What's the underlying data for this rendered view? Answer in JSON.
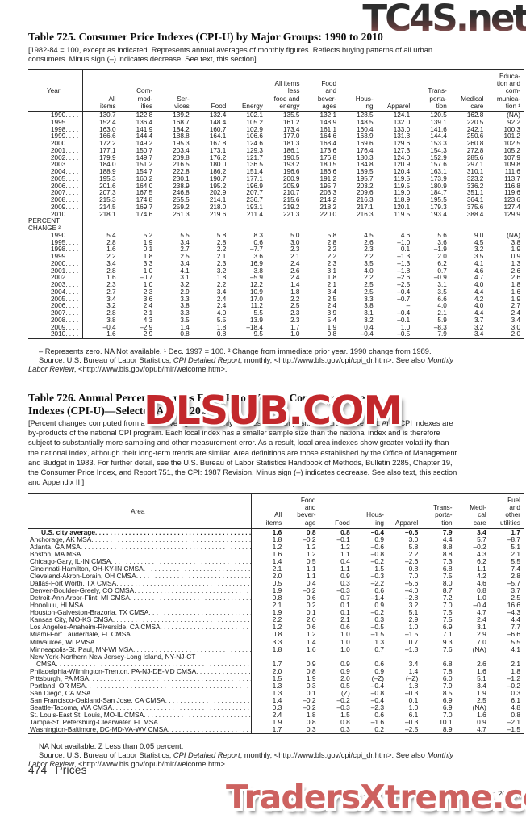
{
  "watermarks": {
    "top": "TC4S.net",
    "middle": "DLSUB.COM",
    "bottom": "TradersXtreme.com"
  },
  "table725": {
    "title": "Table 725. Consumer Price Indexes (CPI-U) by Major Groups: 1990 to 2010",
    "note_lines": [
      "[1982-84 = 100, except as indicated. Represents annual averages of monthly figures. Reflects buying patterns of all urban",
      "consumers. Minus sign (–) indicates decrease. See text, this section]"
    ],
    "year_header": "Year",
    "col_headers": [
      [
        "All",
        "items"
      ],
      [
        "Com-",
        "mod-",
        "ities"
      ],
      [
        "Ser-",
        "vices"
      ],
      [
        "Food"
      ],
      [
        "Energy"
      ],
      [
        "All items",
        "less",
        "food and",
        "energy"
      ],
      [
        "Food",
        "and",
        "bever-",
        "ages"
      ],
      [
        "Hous-",
        "ing"
      ],
      [
        "Apparel"
      ],
      [
        "Trans-",
        "porta-",
        "tion"
      ],
      [
        "Medical",
        "care"
      ],
      [
        "Educa-",
        "tion and",
        "com-",
        "munica-",
        "tion ¹"
      ]
    ],
    "index_rows": [
      {
        "year": "1990",
        "values": [
          "130.7",
          "122.8",
          "139.2",
          "132.4",
          "102.1",
          "135.5",
          "132.1",
          "128.5",
          "124.1",
          "120.5",
          "162.8",
          "(NA)"
        ]
      },
      {
        "year": "1995",
        "values": [
          "152.4",
          "136.4",
          "168.7",
          "148.4",
          "105.2",
          "161.2",
          "148.9",
          "148.5",
          "132.0",
          "139.1",
          "220.5",
          "92.2"
        ]
      },
      {
        "year": "1998",
        "values": [
          "163.0",
          "141.9",
          "184.2",
          "160.7",
          "102.9",
          "173.4",
          "161.1",
          "160.4",
          "133.0",
          "141.6",
          "242.1",
          "100.3"
        ]
      },
      {
        "year": "1999",
        "values": [
          "166.6",
          "144.4",
          "188.8",
          "164.1",
          "106.6",
          "177.0",
          "164.6",
          "163.9",
          "131.3",
          "144.4",
          "250.6",
          "101.2"
        ]
      },
      {
        "year": "2000",
        "values": [
          "172.2",
          "149.2",
          "195.3",
          "167.8",
          "124.6",
          "181.3",
          "168.4",
          "169.6",
          "129.6",
          "153.3",
          "260.8",
          "102.5"
        ]
      },
      {
        "year": "2001",
        "values": [
          "177.1",
          "150.7",
          "203.4",
          "173.1",
          "129.3",
          "186.1",
          "173.6",
          "176.4",
          "127.3",
          "154.3",
          "272.8",
          "105.2"
        ]
      },
      {
        "year": "2002",
        "values": [
          "179.9",
          "149.7",
          "209.8",
          "176.2",
          "121.7",
          "190.5",
          "176.8",
          "180.3",
          "124.0",
          "152.9",
          "285.6",
          "107.9"
        ]
      },
      {
        "year": "2003",
        "values": [
          "184.0",
          "151.2",
          "216.5",
          "180.0",
          "136.5",
          "193.2",
          "180.5",
          "184.8",
          "120.9",
          "157.6",
          "297.1",
          "109.8"
        ]
      },
      {
        "year": "2004",
        "values": [
          "188.9",
          "154.7",
          "222.8",
          "186.2",
          "151.4",
          "196.6",
          "186.6",
          "189.5",
          "120.4",
          "163.1",
          "310.1",
          "111.6"
        ]
      },
      {
        "year": "2005",
        "values": [
          "195.3",
          "160.2",
          "230.1",
          "190.7",
          "177.1",
          "200.9",
          "191.2",
          "195.7",
          "119.5",
          "173.9",
          "323.2",
          "113.7"
        ]
      },
      {
        "year": "2006",
        "values": [
          "201.6",
          "164.0",
          "238.9",
          "195.2",
          "196.9",
          "205.9",
          "195.7",
          "203.2",
          "119.5",
          "180.9",
          "336.2",
          "116.8"
        ]
      },
      {
        "year": "2007",
        "values": [
          "207.3",
          "167.5",
          "246.8",
          "202.9",
          "207.7",
          "210.7",
          "203.3",
          "209.6",
          "119.0",
          "184.7",
          "351.1",
          "119.6"
        ]
      },
      {
        "year": "2008",
        "values": [
          "215.3",
          "174.8",
          "255.5",
          "214.1",
          "236.7",
          "215.6",
          "214.2",
          "216.3",
          "118.9",
          "195.5",
          "364.1",
          "123.6"
        ]
      },
      {
        "year": "2009",
        "values": [
          "214.5",
          "169.7",
          "259.2",
          "218.0",
          "193.1",
          "219.2",
          "218.2",
          "217.1",
          "120.1",
          "179.3",
          "375.6",
          "127.4"
        ]
      },
      {
        "year": "2010",
        "values": [
          "218.1",
          "174.6",
          "261.3",
          "219.6",
          "211.4",
          "221.3",
          "220.0",
          "216.3",
          "119.5",
          "193.4",
          "388.4",
          "129.9"
        ]
      }
    ],
    "percent_label_lines": [
      "PERCENT",
      "CHANGE ²"
    ],
    "percent_rows": [
      {
        "year": "1990",
        "values": [
          "5.4",
          "5.2",
          "5.5",
          "5.8",
          "8.3",
          "5.0",
          "5.8",
          "4.5",
          "4.6",
          "5.6",
          "9.0",
          "(NA)"
        ]
      },
      {
        "year": "1995",
        "values": [
          "2.8",
          "1.9",
          "3.4",
          "2.8",
          "0.6",
          "3.0",
          "2.8",
          "2.6",
          "–1.0",
          "3.6",
          "4.5",
          "3.8"
        ]
      },
      {
        "year": "1998",
        "values": [
          "1.6",
          "0.1",
          "2.7",
          "2.2",
          "–7.7",
          "2.3",
          "2.2",
          "2.3",
          "0.1",
          "–1.9",
          "3.2",
          "1.9"
        ]
      },
      {
        "year": "1999",
        "values": [
          "2.2",
          "1.8",
          "2.5",
          "2.1",
          "3.6",
          "2.1",
          "2.2",
          "2.2",
          "–1.3",
          "2.0",
          "3.5",
          "0.9"
        ]
      },
      {
        "year": "2000",
        "values": [
          "3.4",
          "3.3",
          "3.4",
          "2.3",
          "16.9",
          "2.4",
          "2.3",
          "3.5",
          "–1.3",
          "6.2",
          "4.1",
          "1.3"
        ]
      },
      {
        "year": "2001",
        "values": [
          "2.8",
          "1.0",
          "4.1",
          "3.2",
          "3.8",
          "2.6",
          "3.1",
          "4.0",
          "–1.8",
          "0.7",
          "4.6",
          "2.6"
        ]
      },
      {
        "year": "2002",
        "values": [
          "1.6",
          "–0.7",
          "3.1",
          "1.8",
          "–5.9",
          "2.4",
          "1.8",
          "2.2",
          "–2.6",
          "–0.9",
          "4.7",
          "2.6"
        ]
      },
      {
        "year": "2003",
        "values": [
          "2.3",
          "1.0",
          "3.2",
          "2.2",
          "12.2",
          "1.4",
          "2.1",
          "2.5",
          "–2.5",
          "3.1",
          "4.0",
          "1.8"
        ]
      },
      {
        "year": "2004",
        "values": [
          "2.7",
          "2.3",
          "2.9",
          "3.4",
          "10.9",
          "1.8",
          "3.4",
          "2.5",
          "–0.4",
          "3.5",
          "4.4",
          "1.6"
        ]
      },
      {
        "year": "2005",
        "values": [
          "3.4",
          "3.6",
          "3.3",
          "2.4",
          "17.0",
          "2.2",
          "2.5",
          "3.3",
          "–0.7",
          "6.6",
          "4.2",
          "1.9"
        ]
      },
      {
        "year": "2006",
        "values": [
          "3.2",
          "2.4",
          "3.8",
          "2.4",
          "11.2",
          "2.5",
          "2.4",
          "3.8",
          "–",
          "4.0",
          "4.0",
          "2.7"
        ]
      },
      {
        "year": "2007",
        "values": [
          "2.8",
          "2.1",
          "3.3",
          "4.0",
          "5.5",
          "2.3",
          "3.9",
          "3.1",
          "–0.4",
          "2.1",
          "4.4",
          "2.4"
        ]
      },
      {
        "year": "2008",
        "values": [
          "3.8",
          "4.3",
          "3.5",
          "5.5",
          "13.9",
          "2.3",
          "5.4",
          "3.2",
          "–0.1",
          "5.9",
          "3.7",
          "3.4"
        ]
      },
      {
        "year": "2009",
        "values": [
          "–0.4",
          "–2.9",
          "1.4",
          "1.8",
          "–18.4",
          "1.7",
          "1.9",
          "0.4",
          "1.0",
          "–8.3",
          "3.2",
          "3.0"
        ]
      },
      {
        "year": "2010",
        "values": [
          "1.6",
          "2.9",
          "0.8",
          "0.8",
          "9.5",
          "1.0",
          "0.8",
          "–0.4",
          "–0.5",
          "7.9",
          "3.4",
          "2.0"
        ]
      }
    ],
    "footnote_line1": [
      {
        "t": "– Represents zero. NA Not available. ¹ Dec. 1997 = 100. ² Change from immediate prior year. 1990 change from 1989."
      }
    ],
    "footnote_line2": [
      {
        "t": "Source: U.S. Bureau of Labor Statistics, "
      },
      {
        "t": "CPI Detailed Report",
        "i": true
      },
      {
        "t": ", monthly, <http://www.bls.gov/cpi/cpi_dr.htm>. See also "
      },
      {
        "t": "Monthly",
        "i": true
      }
    ],
    "footnote_line3": [
      {
        "t": "Labor Review",
        "i": true
      },
      {
        "t": ", <http://www.bls.gov/opub/mlr/welcome.htm>."
      }
    ]
  },
  "table726": {
    "title_lines": [
      "Table 726. Annual Percent Changes From Prior Year in Consumer Price",
      "Indexes (CPI-U)—Selected Areas: 2010"
    ],
    "note_lines": [
      "[Percent changes computed from annual averages of monthly indexes. For composition of areas, see text. Area CPI indexes are",
      "by-products of the national CPI program. Each local index has a smaller sample size than the national index and is therefore",
      "subject to substantially more sampling and other measurement error. As a result, local area indexes show greater volatility than",
      "the national index, although their long-term trends are similar. Area definitions are those established by the Office of Management",
      "and Budget in 1983. For further detail, see the U.S. Bureau of Labor Statistics Handbook of Methods, Bulletin 2285, Chapter 19,",
      "the Consumer Price Index, and Report 751, the CPI: 1987 Revision. Minus sign (–) indicates decrease. See also text, this section",
      "and Appendix III]"
    ],
    "area_header": "Area",
    "col_headers": [
      [
        "All",
        "items"
      ],
      [
        "Food",
        "and",
        "bever-",
        "age"
      ],
      [
        "Food"
      ],
      [
        "Hous-",
        "ing"
      ],
      [
        "Apparel"
      ],
      [
        "Trans-",
        "porta-",
        "tion"
      ],
      [
        "Medi-",
        "cal",
        "care"
      ],
      [
        "Fuel",
        "and",
        "other",
        "utilities"
      ]
    ],
    "rows": [
      {
        "area": "U.S. city average",
        "bold": true,
        "indent": true,
        "values": [
          "1.6",
          "0.8",
          "0.8",
          "–0.4",
          "–0.5",
          "7.9",
          "3.4",
          "1.7"
        ]
      },
      {
        "area": "Anchorage, AK MSA",
        "values": [
          "1.8",
          "–0.2",
          "–0.1",
          "0.9",
          "3.0",
          "4.4",
          "5.7",
          "–8.7"
        ]
      },
      {
        "area": "Atlanta, GA MSA",
        "values": [
          "1.2",
          "1.2",
          "1.2",
          "–0.6",
          "5.8",
          "8.8",
          "–0.2",
          "5.1"
        ]
      },
      {
        "area": "Boston, MA MSA",
        "values": [
          "1.6",
          "1.2",
          "1.1",
          "–0.8",
          "2.2",
          "8.8",
          "4.3",
          "2.1"
        ]
      },
      {
        "area": "Chicago-Gary, IL-IN CMSA",
        "values": [
          "1.4",
          "0.5",
          "0.4",
          "–0.2",
          "–2.6",
          "7.3",
          "6.2",
          "5.5"
        ]
      },
      {
        "area": "Cincinnati-Hamilton, OH-KY-IN CMSA",
        "values": [
          "2.1",
          "1.1",
          "1.1",
          "1.5",
          "0.8",
          "6.8",
          "1.1",
          "7.4"
        ]
      },
      {
        "area": "Cleveland-Akron-Lorain, OH CMSA",
        "values": [
          "2.0",
          "1.1",
          "0.9",
          "–0.3",
          "7.0",
          "7.5",
          "4.2",
          "2.8"
        ]
      },
      {
        "area": "Dallas-Fort Worth, TX CMSA",
        "values": [
          "0.5",
          "0.4",
          "0.3",
          "–2.2",
          "–5.6",
          "8.0",
          "4.6",
          "–5.7"
        ]
      },
      {
        "area": "Denver-Boulder-Greely, CO CMSA",
        "values": [
          "1.9",
          "–0.2",
          "–0.3",
          "0.6",
          "–4.0",
          "8.7",
          "0.8",
          "3.7"
        ]
      },
      {
        "area": "Detroit-Ann Arbor-Flint, MI CMSA",
        "values": [
          "0.8",
          "0.6",
          "0.7",
          "–1.4",
          "–2.8",
          "7.2",
          "1.0",
          "2.5"
        ]
      },
      {
        "area": "Honolulu, HI MSA",
        "values": [
          "2.1",
          "0.2",
          "0.1",
          "0.9",
          "3.2",
          "7.0",
          "–0.4",
          "16.6"
        ]
      },
      {
        "area": "Houston-Galveston-Brazoria, TX CMSA",
        "values": [
          "1.9",
          "0.1",
          "0.1",
          "–0.2",
          "5.1",
          "7.5",
          "4.7",
          "–4.3"
        ]
      },
      {
        "area": "Kansas City, MO-KS CMSA",
        "values": [
          "2.2",
          "2.0",
          "2.1",
          "0.3",
          "2.9",
          "7.5",
          "2.4",
          "4.4"
        ]
      },
      {
        "area": "Los Angeles-Anaheim-Riverside, CA CMSA",
        "values": [
          "1.2",
          "0.6",
          "0.6",
          "–0.5",
          "1.0",
          "6.9",
          "3.1",
          "7.7"
        ]
      },
      {
        "area": "Miami-Fort Lauderdale, FL CMSA",
        "values": [
          "0.8",
          "1.2",
          "1.0",
          "–1.5",
          "–1.5",
          "7.1",
          "2.9",
          "–6.6"
        ]
      },
      {
        "area": "Milwaukee, WI PMSA",
        "values": [
          "3.3",
          "1.4",
          "1.0",
          "1.3",
          "0.7",
          "9.3",
          "7.0",
          "5.5"
        ]
      },
      {
        "area": "Minneapolis-St. Paul, MN-WI MSA",
        "values": [
          "1.8",
          "1.6",
          "1.0",
          "0.7",
          "–1.3",
          "7.6",
          "(NA)",
          "4.1"
        ]
      },
      {
        "area": "New York-Northern New Jersey-Long Island, NY-NJ-CT",
        "area2": "CMSA",
        "values": [
          "1.7",
          "0.9",
          "0.9",
          "0.6",
          "3.4",
          "6.8",
          "2.6",
          "2.1"
        ]
      },
      {
        "area": "Philadelphia-Wilmington-Trenton, PA-NJ-DE-MD CMSA",
        "values": [
          "2.0",
          "0.8",
          "0.9",
          "0.9",
          "1.4",
          "7.8",
          "1.6",
          "1.8"
        ]
      },
      {
        "area": "Pittsburgh, PA MSA",
        "values": [
          "1.5",
          "1.9",
          "2.0",
          "(–Z)",
          "(–Z)",
          "6.0",
          "5.1",
          "–1.2"
        ]
      },
      {
        "area": "Portland, OR MSA",
        "values": [
          "1.3",
          "0.3",
          "0.5",
          "–0.4",
          "1.8",
          "7.9",
          "3.4",
          "–0.2"
        ]
      },
      {
        "area": "San Diego, CA MSA",
        "values": [
          "1.3",
          "0.1",
          "(Z)",
          "–0.8",
          "–0.3",
          "8.5",
          "1.9",
          "0.3"
        ]
      },
      {
        "area": "San Francisco-Oakland-San Jose, CA CMSA",
        "values": [
          "1.4",
          "–0.2",
          "–0.2",
          "–0.4",
          "0.1",
          "6.9",
          "2.5",
          "6.1"
        ]
      },
      {
        "area": "Seattle-Tacoma, WA CMSA",
        "values": [
          "0.3",
          "–0.2",
          "–0.3",
          "–2.3",
          "1.0",
          "6.9",
          "(NA)",
          "4.8"
        ]
      },
      {
        "area": "St. Louis-East St. Louis, MO-IL CMSA",
        "values": [
          "2.4",
          "1.8",
          "1.5",
          "0.6",
          "6.1",
          "7.0",
          "1.6",
          "0.8"
        ]
      },
      {
        "area": "Tampa-St. Petersburg-Clearwater, FL MSA",
        "values": [
          "1.9",
          "0.8",
          "0.8",
          "–1.6",
          "–0.3",
          "10.1",
          "0.9",
          "–2.1"
        ]
      },
      {
        "area": "Washington-Baltimore, DC-MD-VA-WV CMSA",
        "values": [
          "1.7",
          "0.3",
          "0.3",
          "0.2",
          "–2.5",
          "8.9",
          "4.7",
          "–1.5"
        ]
      }
    ],
    "footnote_line1": [
      {
        "t": "NA Not available. Z Less than 0.05 percent."
      }
    ],
    "footnote_line2": [
      {
        "t": "Source: U.S. Bureau of Labor Statistics, "
      },
      {
        "t": "CPI Detailed Report",
        "i": true
      },
      {
        "t": ", monthly, <http://www.bls.gov/cpi/cpi_dr.htm>. See also "
      },
      {
        "t": "Monthly",
        "i": true
      }
    ],
    "footnote_line3": [
      {
        "t": "Labor Review",
        "i": true
      },
      {
        "t": ", <http://www.bls.gov/opub/mlr/welcome.htm>."
      }
    ]
  },
  "footer": {
    "page_number": "474",
    "section": "Prices",
    "credit": "U.S. Census Bureau, Statistical Abstract of the United States: 2012"
  }
}
